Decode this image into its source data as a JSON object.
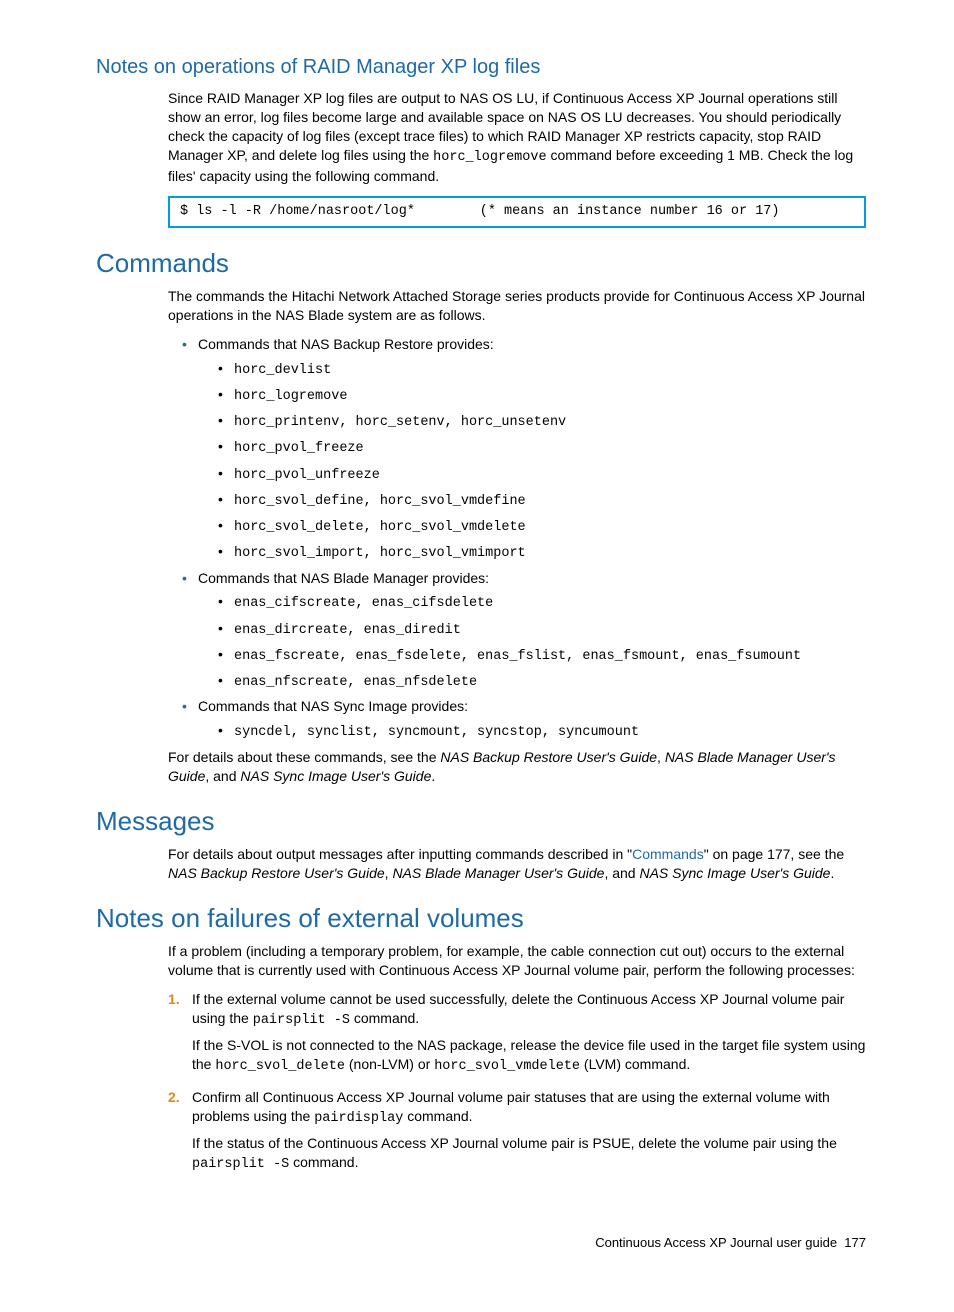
{
  "colors": {
    "heading_blue": "#1f6aa5",
    "bullet_blue": "#1f6aa5",
    "codebox_border": "#009fda",
    "link_blue": "#1f6aa5",
    "number_orange": "#d98b1a",
    "text": "#000000",
    "background": "#ffffff"
  },
  "typography": {
    "body_font": "Futura / Century Gothic",
    "mono_font": "Courier New",
    "body_size_pt": 10.5,
    "h_main_size_pt": 19,
    "h_sub_size_pt": 15
  },
  "sec1": {
    "title": "Notes on operations of RAID Manager XP log files",
    "para_a": "Since RAID Manager XP log files are output to NAS OS LU, if Continuous Access XP Journal operations still show an error, log files become large and available space on NAS OS LU decreases. You should periodically check the capacity of log files (except trace files) to which RAID Manager XP restricts capacity, stop RAID Manager XP, and delete log files using the ",
    "para_cmd": "horc_logremove",
    "para_b": " command before exceeding 1 MB. Check the log files' capacity using the following command.",
    "codebox": "$ ls -l -R /home/nasroot/log*        (* means an instance number 16 or 17)"
  },
  "sec2": {
    "title": "Commands",
    "intro": "The commands the Hitachi Network Attached Storage series products provide for Continuous Access XP Journal operations in the NAS Blade system are as follows.",
    "g1_label": "Commands that NAS Backup Restore provides:",
    "g1_items": {
      "i0": "horc_devlist",
      "i1": "horc_logremove",
      "i2": "horc_printenv, horc_setenv, horc_unsetenv",
      "i3": "horc_pvol_freeze",
      "i4": "horc_pvol_unfreeze",
      "i5": "horc_svol_define, horc_svol_vmdefine",
      "i6": "horc_svol_delete, horc_svol_vmdelete",
      "i7": "horc_svol_import, horc_svol_vmimport"
    },
    "g2_label": "Commands that NAS Blade Manager provides:",
    "g2_items": {
      "i0": "enas_cifscreate, enas_cifsdelete",
      "i1": "enas_dircreate, enas_diredit",
      "i2": "enas_fscreate, enas_fsdelete, enas_fslist, enas_fsmount, enas_fsumount",
      "i3": "enas_nfscreate, enas_nfsdelete"
    },
    "g3_label": "Commands that NAS Sync Image provides:",
    "g3_items": {
      "i0": "syncdel, synclist, syncmount, syncstop, syncumount"
    },
    "outro_a": "For details about these commands, see the ",
    "outro_ref1": "NAS Backup Restore User's Guide",
    "sep1": ", ",
    "outro_ref2": "NAS Blade Manager User's Guide",
    "sep2": ", and ",
    "outro_ref3": "NAS Sync Image User's Guide",
    "outro_end": "."
  },
  "sec3": {
    "title": "Messages",
    "para_a": "For details about output messages after inputting commands described in \"",
    "link_text": "Commands",
    "para_b": "\" on page 177, see the ",
    "ref1": "NAS Backup Restore User's Guide",
    "sep1": ", ",
    "ref2": "NAS Blade Manager User's Guide",
    "sep2": ", and ",
    "ref3": "NAS Sync Image User's Guide",
    "para_end": "."
  },
  "sec4": {
    "title": "Notes on failures of external volumes",
    "intro": "If a problem (including a temporary problem, for example, the cable connection cut out) occurs to the external volume that is currently used with Continuous Access XP Journal volume pair, perform the following processes:",
    "step1": {
      "num": "1.",
      "a": "If the external volume cannot be used successfully, delete the Continuous Access XP Journal volume pair using the ",
      "cmd1": "pairsplit -S",
      "b": " command.",
      "c": "If the S-VOL is not connected to the NAS package, release the device file used in the target file system using the ",
      "cmd2": "horc_svol_delete",
      "d": " (non-LVM) or ",
      "cmd3": "horc_svol_vmdelete",
      "e": " (LVM) command."
    },
    "step2": {
      "num": "2.",
      "a": "Confirm all Continuous Access XP Journal volume pair statuses that are using the external volume with problems using the ",
      "cmd1": "pairdisplay",
      "b": " command.",
      "c": "If the status of the Continuous Access XP Journal volume pair is PSUE, delete the volume pair using the ",
      "cmd2": "pairsplit -S",
      "d": " command."
    }
  },
  "footer": {
    "text": "Continuous Access XP Journal user guide",
    "page": "177"
  }
}
